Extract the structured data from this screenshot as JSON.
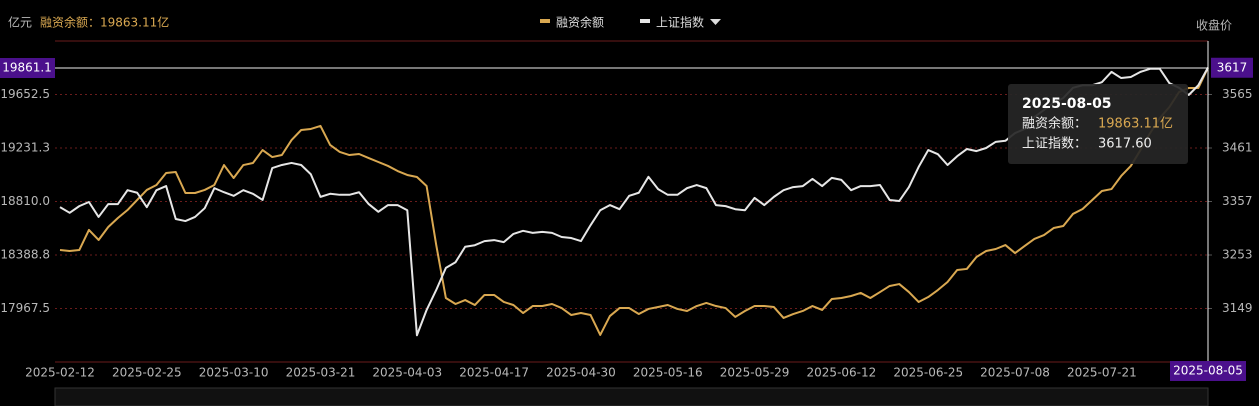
{
  "chart_data": {
    "type": "line",
    "y_unit": "亿元",
    "header_value": "融资余额：19863.11亿",
    "y2_title": "收盘价",
    "categories": [
      "2025-02-12",
      null,
      null,
      null,
      null,
      null,
      null,
      null,
      null,
      "2025-02-25",
      null,
      null,
      null,
      null,
      null,
      null,
      null,
      null,
      "2025-03-10",
      null,
      null,
      null,
      null,
      null,
      null,
      null,
      null,
      "2025-03-21",
      null,
      null,
      null,
      null,
      null,
      null,
      null,
      null,
      "2025-04-03",
      null,
      null,
      null,
      null,
      null,
      null,
      null,
      null,
      "2025-04-17",
      null,
      null,
      null,
      null,
      null,
      null,
      null,
      null,
      "2025-04-30",
      null,
      null,
      null,
      null,
      null,
      null,
      null,
      null,
      "2025-05-16",
      null,
      null,
      null,
      null,
      null,
      null,
      null,
      null,
      "2025-05-29",
      null,
      null,
      null,
      null,
      null,
      null,
      null,
      null,
      "2025-06-12",
      null,
      null,
      null,
      null,
      null,
      null,
      null,
      null,
      "2025-06-25",
      null,
      null,
      null,
      null,
      null,
      null,
      null,
      null,
      "2025-07-08",
      null,
      null,
      null,
      null,
      null,
      null,
      null,
      null,
      "2025-07-21",
      null,
      null,
      null,
      null,
      null,
      null,
      null,
      null,
      null,
      null,
      "2025-08-05"
    ],
    "series": [
      {
        "name": "融资余额",
        "color": "#d9a851",
        "values": [
          18428,
          18420,
          18428,
          18586,
          18507,
          18609,
          18680,
          18743,
          18822,
          18901,
          18940,
          19034,
          19042,
          18877,
          18877,
          18901,
          18940,
          19097,
          18995,
          19097,
          19113,
          19215,
          19160,
          19176,
          19294,
          19373,
          19381,
          19405,
          19255,
          19200,
          19176,
          19184,
          19152,
          19121,
          19090,
          19050,
          19019,
          19003,
          18932,
          18467,
          18050,
          18003,
          18034,
          17995,
          18074,
          18074,
          18019,
          17995,
          17932,
          17987,
          17987,
          18003,
          17971,
          17916,
          17932,
          17916,
          17759,
          17908,
          17971,
          17971,
          17924,
          17964,
          17979,
          17995,
          17964,
          17948,
          17987,
          18011,
          17987,
          17971,
          17901,
          17948,
          17987,
          17987,
          17979,
          17893,
          17924,
          17948,
          17987,
          17956,
          18042,
          18050,
          18066,
          18090,
          18050,
          18097,
          18145,
          18160,
          18097,
          18019,
          18058,
          18113,
          18176,
          18271,
          18279,
          18373,
          18420,
          18436,
          18467,
          18404,
          18460,
          18515,
          18546,
          18601,
          18617,
          18712,
          18751,
          18822,
          18893,
          18908,
          19011,
          19090,
          19215,
          19349,
          19467,
          19554,
          19672,
          19704,
          19704,
          19863.11
        ]
      },
      {
        "name": "上证指数",
        "color": "#e6e6e6",
        "axis": "y2",
        "values": [
          3346,
          3335,
          3348,
          3356,
          3327,
          3352,
          3352,
          3379,
          3374,
          3346,
          3379,
          3387,
          3323,
          3319,
          3327,
          3344,
          3383,
          3375,
          3368,
          3379,
          3372,
          3360,
          3422,
          3428,
          3432,
          3428,
          3410,
          3366,
          3372,
          3370,
          3370,
          3375,
          3352,
          3337,
          3350,
          3350,
          3340,
          3097,
          3146,
          3185,
          3228,
          3239,
          3269,
          3272,
          3280,
          3282,
          3278,
          3294,
          3300,
          3296,
          3298,
          3296,
          3288,
          3286,
          3280,
          3311,
          3340,
          3350,
          3342,
          3368,
          3374,
          3405,
          3381,
          3370,
          3370,
          3383,
          3389,
          3383,
          3350,
          3348,
          3342,
          3340,
          3364,
          3350,
          3366,
          3379,
          3385,
          3387,
          3401,
          3387,
          3403,
          3399,
          3379,
          3387,
          3387,
          3389,
          3360,
          3358,
          3385,
          3424,
          3457,
          3449,
          3428,
          3445,
          3459,
          3455,
          3461,
          3473,
          3475,
          3490,
          3498,
          3521,
          3535,
          3549,
          3558,
          3578,
          3583,
          3583,
          3589,
          3609,
          3597,
          3599,
          3609,
          3615,
          3615,
          3587,
          3578,
          3564,
          3583,
          3617.6
        ]
      }
    ],
    "ylim": [
      17546.25,
      20073.75
    ],
    "yticks": [
      17967.5,
      {
        "value": 18388.75,
        "label": "18388.8"
      },
      {
        "value": 18810,
        "label": "18810.0"
      },
      {
        "value": 19231.25,
        "label": "19231.3"
      },
      19652.5
    ],
    "y2lim": [
      3045,
      3669
    ],
    "y2ticks": [
      3149,
      3253,
      3357,
      3461,
      3565
    ],
    "grid": true,
    "pointer": {
      "y_value": 19861.1,
      "y2_value": 3617,
      "index": 119
    },
    "tooltip": {
      "title": "2025-08-05",
      "rows": [
        {
          "name": "融资余额：",
          "value": "19863.11亿"
        },
        {
          "name": "上证指数：",
          "value": "3617.60"
        }
      ]
    }
  }
}
